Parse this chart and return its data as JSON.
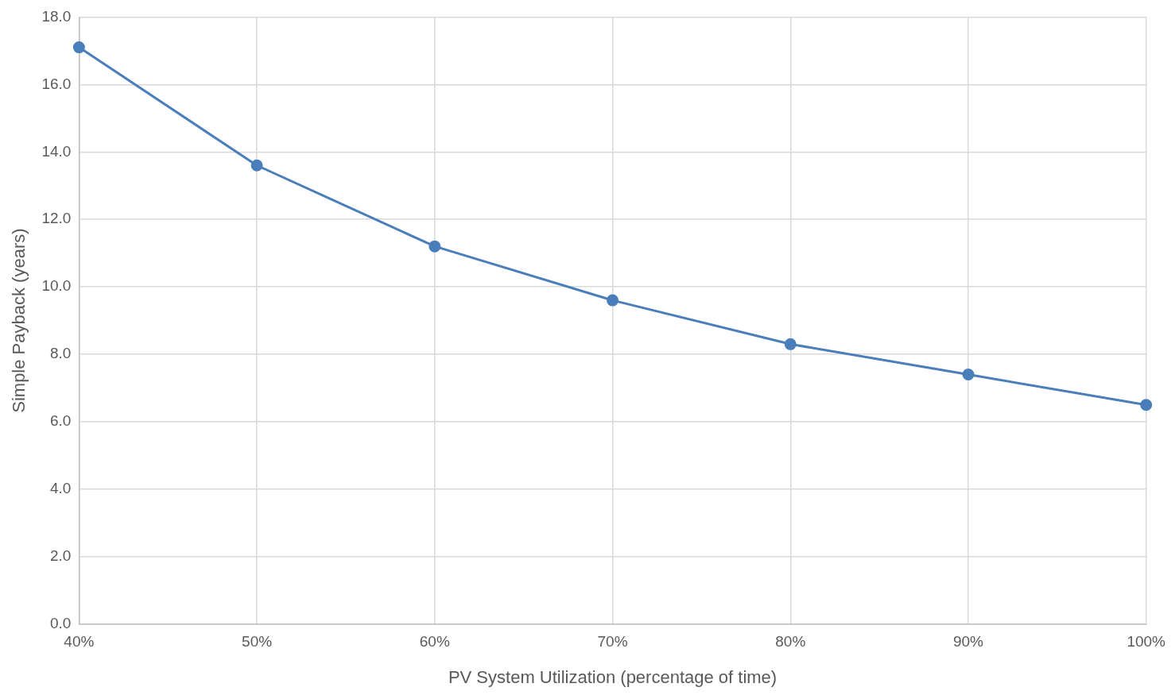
{
  "chart_data": {
    "type": "line",
    "xlabel": "PV System Utilization (percentage of time)",
    "ylabel": "Simple Payback (years)",
    "categories": [
      "40%",
      "50%",
      "60%",
      "70%",
      "80%",
      "90%",
      "100%"
    ],
    "series": [
      {
        "color": "#4a7ebb",
        "values": [
          17.1,
          13.6,
          11.2,
          9.6,
          8.3,
          7.4,
          6.5
        ]
      }
    ],
    "ylim": [
      0,
      18
    ],
    "yticks": [
      {
        "value": 0,
        "label": "0.0"
      },
      {
        "value": 2,
        "label": "2.0"
      },
      {
        "value": 4,
        "label": "4.0"
      },
      {
        "value": 6,
        "label": "6.0"
      },
      {
        "value": 8,
        "label": "8.0"
      },
      {
        "value": 10,
        "label": "10.0"
      },
      {
        "value": 12,
        "label": "12.0"
      },
      {
        "value": 14,
        "label": "14.0"
      },
      {
        "value": 16,
        "label": "16.0"
      },
      {
        "value": 18,
        "label": "18.0"
      }
    ],
    "grid": true,
    "legend": false,
    "marker": "circle",
    "line_style": "solid"
  }
}
